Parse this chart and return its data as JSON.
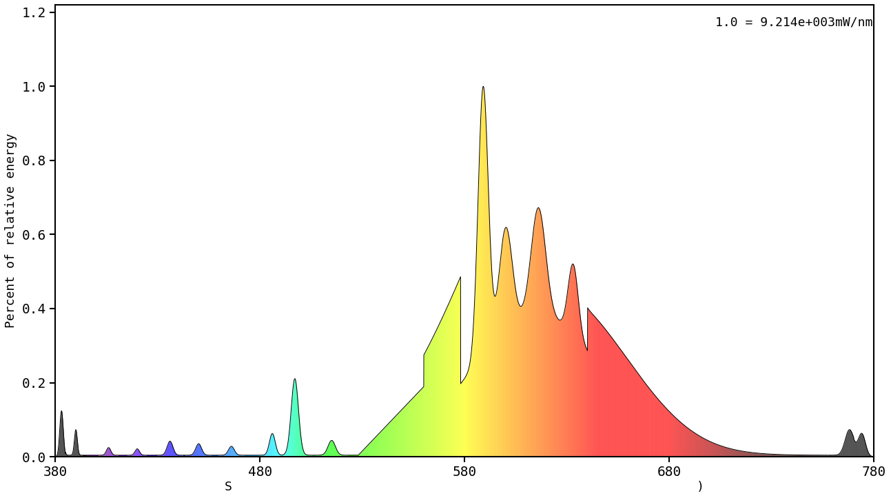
{
  "annotation": "1.0 = 9.214e+003mW/nm",
  "xlabel": "S                                                              )",
  "ylabel": "Percent of relative energy",
  "xlim": [
    380,
    780
  ],
  "ylim": [
    0.0,
    1.22
  ],
  "xticks": [
    380,
    480,
    580,
    680,
    780
  ],
  "yticks": [
    0.0,
    0.2,
    0.4,
    0.6,
    0.8,
    1.0,
    1.2
  ],
  "background_color": "#ffffff"
}
